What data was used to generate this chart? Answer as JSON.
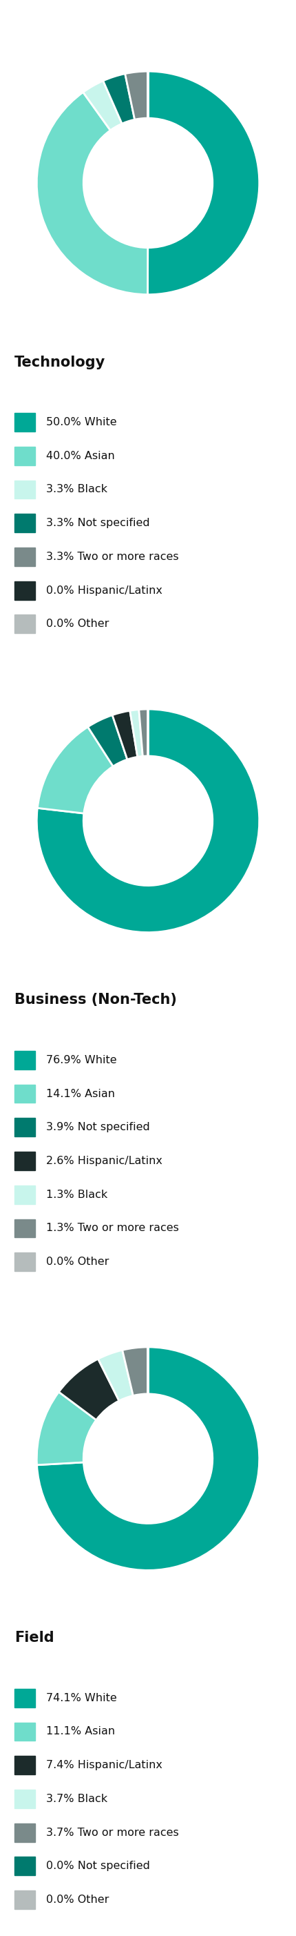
{
  "charts": [
    {
      "title": "Technology",
      "slices": [
        {
          "label": "50.0% White",
          "value": 50.0,
          "color": "#00A896"
        },
        {
          "label": "40.0% Asian",
          "value": 40.0,
          "color": "#6FDDCB"
        },
        {
          "label": "3.3% Black",
          "value": 3.3,
          "color": "#C8F5EC"
        },
        {
          "label": "3.3% Not specified",
          "value": 3.3,
          "color": "#007A6E"
        },
        {
          "label": "3.3% Two or more races",
          "value": 3.3,
          "color": "#7A8A8A"
        },
        {
          "label": "0.0% Hispanic/Latinx",
          "value": 0.001,
          "color": "#1C2B2B"
        },
        {
          "label": "0.0% Other",
          "value": 0.001,
          "color": "#B5BCBC"
        }
      ]
    },
    {
      "title": "Business (Non-Tech)",
      "slices": [
        {
          "label": "76.9% White",
          "value": 76.9,
          "color": "#00A896"
        },
        {
          "label": "14.1% Asian",
          "value": 14.1,
          "color": "#6FDDCB"
        },
        {
          "label": "3.9% Not specified",
          "value": 3.9,
          "color": "#007A6E"
        },
        {
          "label": "2.6% Hispanic/Latinx",
          "value": 2.6,
          "color": "#1C2B2B"
        },
        {
          "label": "1.3% Black",
          "value": 1.3,
          "color": "#C8F5EC"
        },
        {
          "label": "1.3% Two or more races",
          "value": 1.3,
          "color": "#7A8A8A"
        },
        {
          "label": "0.0% Other",
          "value": 0.001,
          "color": "#B5BCBC"
        }
      ]
    },
    {
      "title": "Field",
      "slices": [
        {
          "label": "74.1% White",
          "value": 74.1,
          "color": "#00A896"
        },
        {
          "label": "11.1% Asian",
          "value": 11.1,
          "color": "#6FDDCB"
        },
        {
          "label": "7.4% Hispanic/Latinx",
          "value": 7.4,
          "color": "#1C2B2B"
        },
        {
          "label": "3.7% Black",
          "value": 3.7,
          "color": "#C8F5EC"
        },
        {
          "label": "3.7% Two or more races",
          "value": 3.7,
          "color": "#7A8A8A"
        },
        {
          "label": "0.0% Not specified",
          "value": 0.001,
          "color": "#007A6E"
        },
        {
          "label": "0.0% Other",
          "value": 0.001,
          "color": "#B5BCBC"
        }
      ]
    }
  ],
  "background_color": "#FFFFFF",
  "donut_width": 0.42,
  "title_fontsize": 15,
  "legend_fontsize": 11.5,
  "wedge_edge_color": "#FFFFFF",
  "wedge_linewidth": 2.0
}
